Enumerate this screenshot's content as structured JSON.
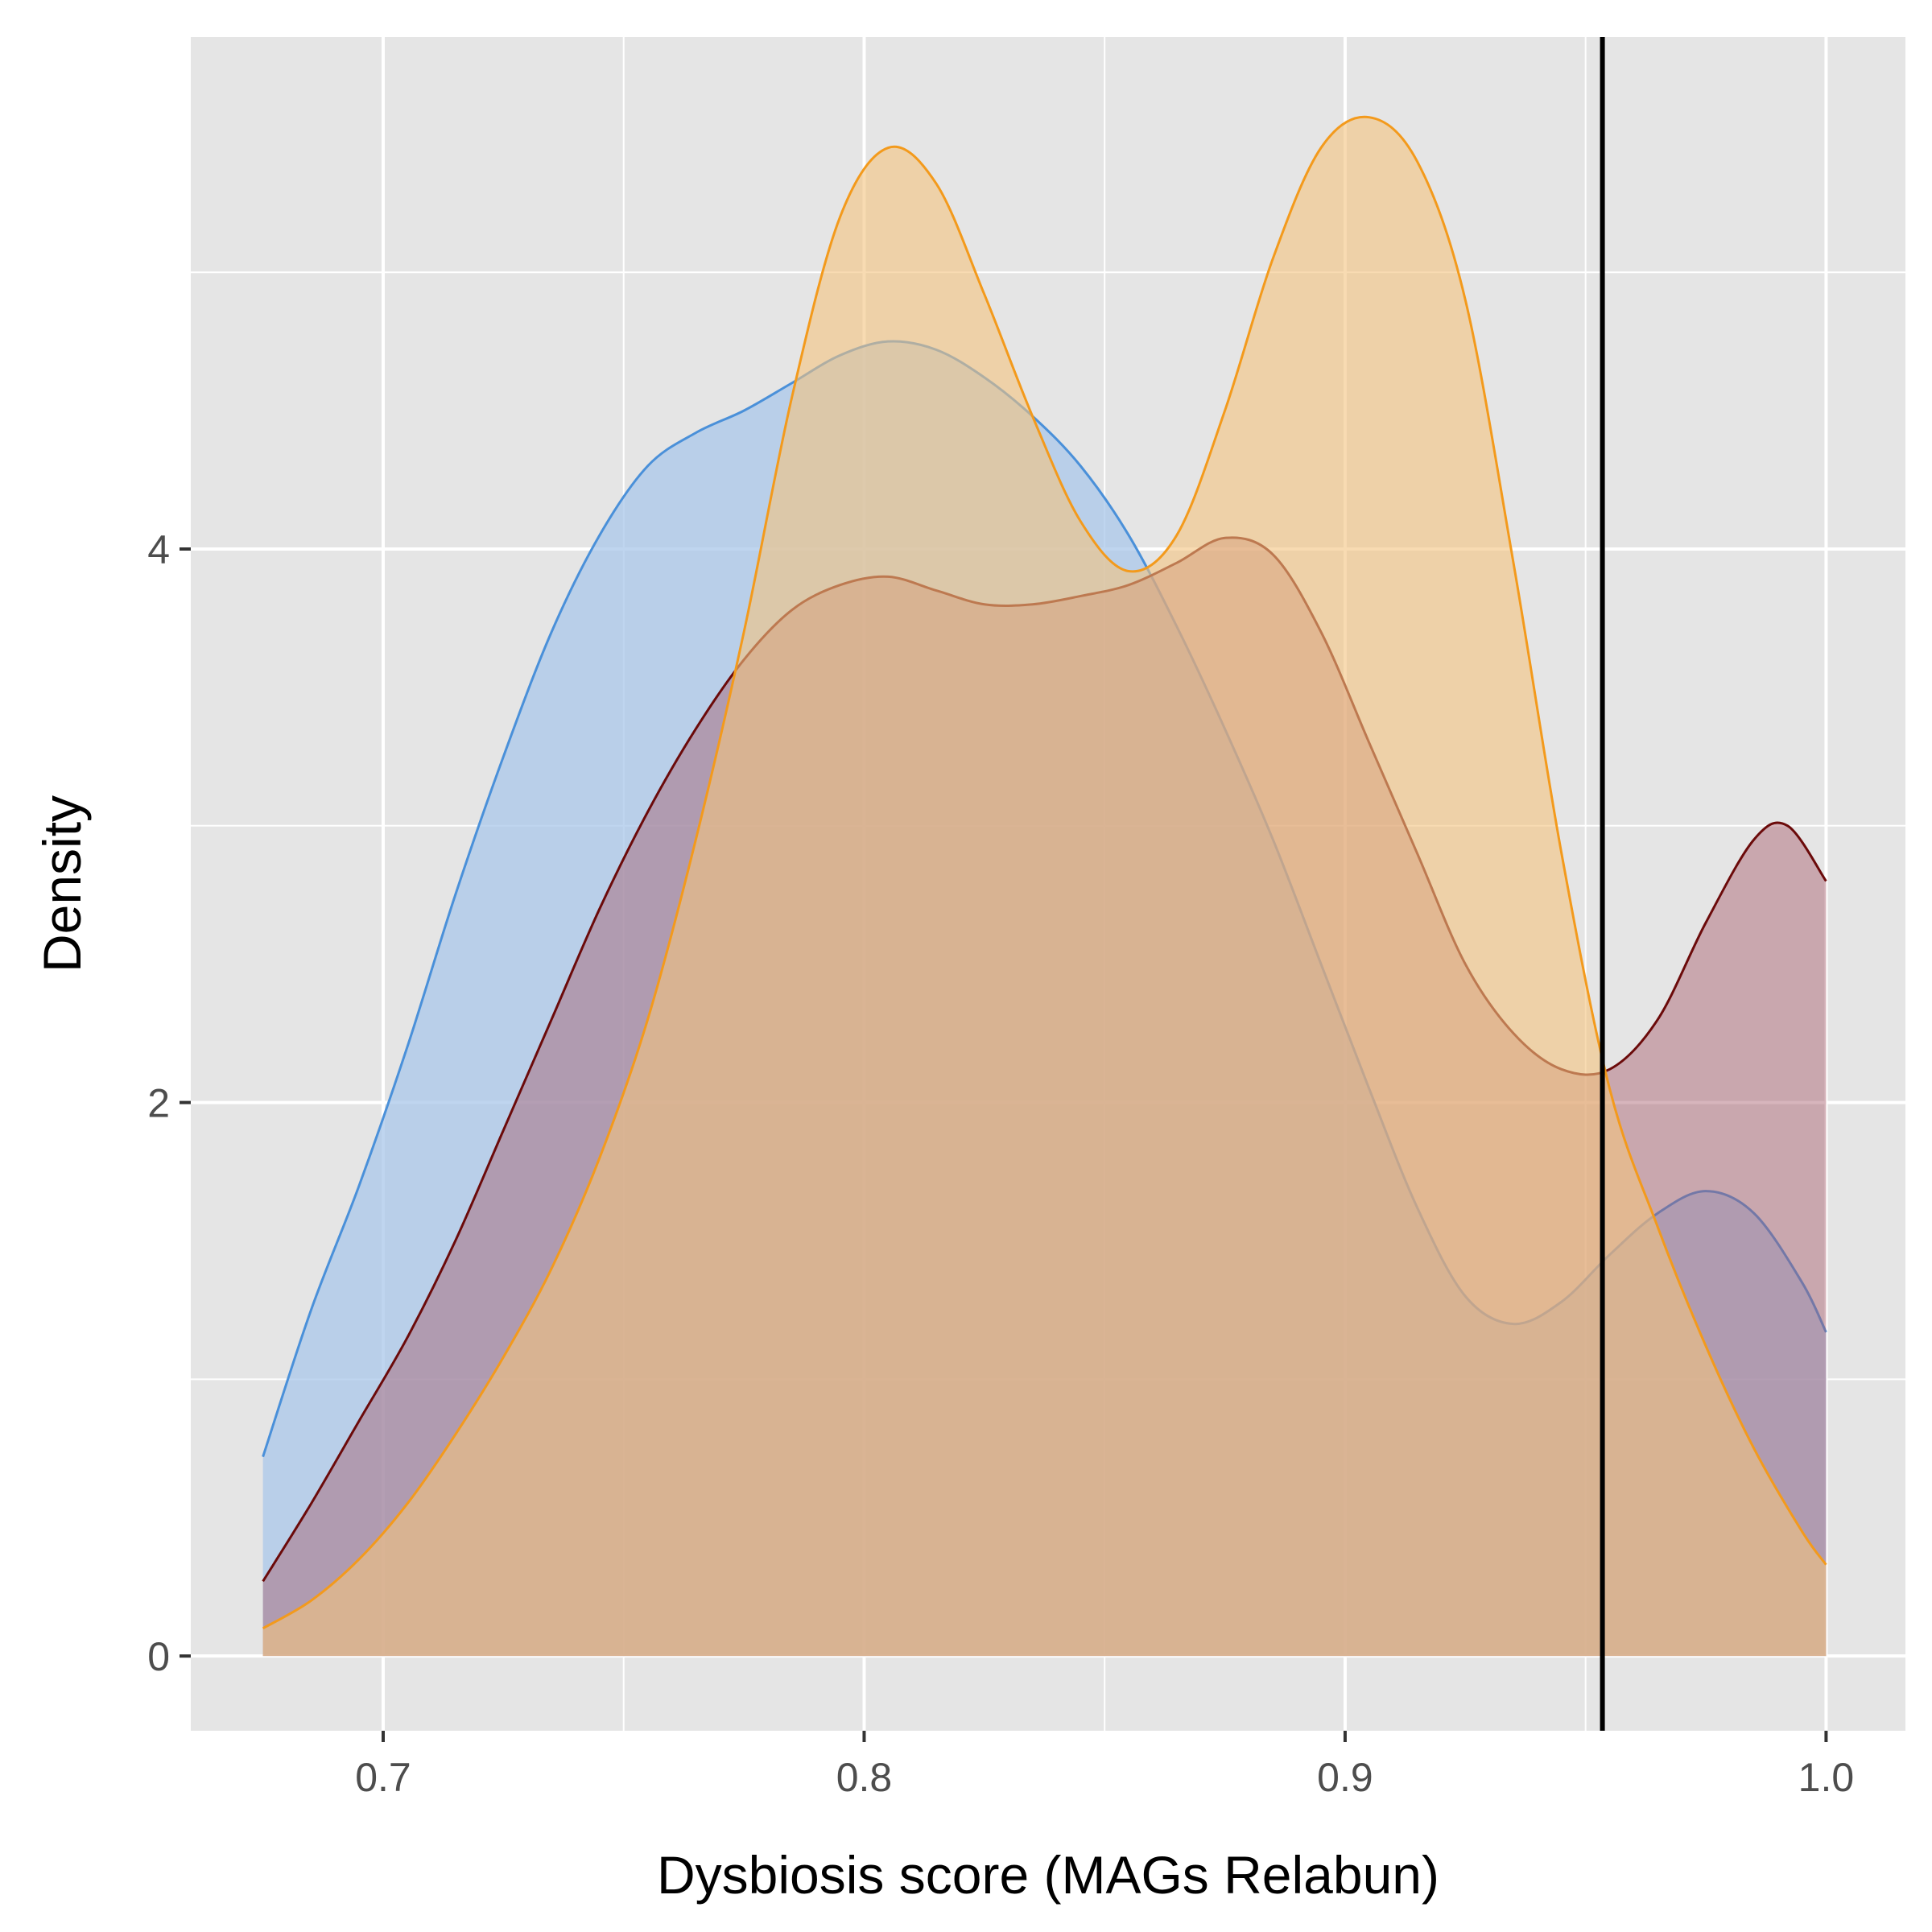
{
  "chart_data": {
    "type": "area",
    "chart_subtype": "density",
    "title": "",
    "xlabel": "Dysbiosis score (MAGs Relabun)",
    "ylabel": "Density",
    "xlim": [
      0.66,
      1.0165
    ],
    "ylim": [
      -0.27,
      5.85
    ],
    "x_ticks": [
      0.7,
      0.8,
      0.9,
      1.0
    ],
    "x_tick_labels": [
      "0.7",
      "0.8",
      "0.9",
      "1.0"
    ],
    "y_ticks": [
      0,
      2,
      4
    ],
    "y_tick_labels": [
      "0",
      "2",
      "4"
    ],
    "x_minor_grid": [
      0.75,
      0.85,
      0.95
    ],
    "y_minor_grid": [
      1,
      3,
      5
    ],
    "grid": true,
    "background_color": "#e5e5e5",
    "grid_color": "#ffffff",
    "legend": "none",
    "vline": {
      "x": 0.9535,
      "color": "#000000"
    },
    "series": [
      {
        "line_color": "#4a90d9",
        "fill_color": "#a9c7ea",
        "fill_opacity": 0.75,
        "points": [
          [
            0.675,
            0.72
          ],
          [
            0.685,
            1.25
          ],
          [
            0.695,
            1.7
          ],
          [
            0.705,
            2.2
          ],
          [
            0.715,
            2.75
          ],
          [
            0.725,
            3.25
          ],
          [
            0.735,
            3.7
          ],
          [
            0.745,
            4.05
          ],
          [
            0.755,
            4.3
          ],
          [
            0.765,
            4.42
          ],
          [
            0.775,
            4.5
          ],
          [
            0.785,
            4.6
          ],
          [
            0.795,
            4.7
          ],
          [
            0.805,
            4.75
          ],
          [
            0.815,
            4.72
          ],
          [
            0.825,
            4.62
          ],
          [
            0.835,
            4.48
          ],
          [
            0.845,
            4.3
          ],
          [
            0.855,
            4.05
          ],
          [
            0.865,
            3.72
          ],
          [
            0.875,
            3.35
          ],
          [
            0.885,
            2.95
          ],
          [
            0.895,
            2.5
          ],
          [
            0.905,
            2.05
          ],
          [
            0.915,
            1.62
          ],
          [
            0.925,
            1.3
          ],
          [
            0.935,
            1.2
          ],
          [
            0.945,
            1.28
          ],
          [
            0.955,
            1.45
          ],
          [
            0.965,
            1.6
          ],
          [
            0.975,
            1.68
          ],
          [
            0.985,
            1.6
          ],
          [
            0.995,
            1.35
          ],
          [
            1.0,
            1.17
          ]
        ]
      },
      {
        "line_color": "#6b0a0a",
        "fill_color": "#a65a6a",
        "fill_opacity": 0.45,
        "points": [
          [
            0.675,
            0.27
          ],
          [
            0.685,
            0.55
          ],
          [
            0.695,
            0.85
          ],
          [
            0.705,
            1.15
          ],
          [
            0.715,
            1.5
          ],
          [
            0.725,
            1.9
          ],
          [
            0.735,
            2.3
          ],
          [
            0.745,
            2.7
          ],
          [
            0.755,
            3.05
          ],
          [
            0.765,
            3.35
          ],
          [
            0.775,
            3.6
          ],
          [
            0.785,
            3.78
          ],
          [
            0.795,
            3.87
          ],
          [
            0.805,
            3.9
          ],
          [
            0.815,
            3.85
          ],
          [
            0.825,
            3.8
          ],
          [
            0.835,
            3.8
          ],
          [
            0.845,
            3.83
          ],
          [
            0.855,
            3.87
          ],
          [
            0.865,
            3.95
          ],
          [
            0.875,
            4.04
          ],
          [
            0.885,
            3.98
          ],
          [
            0.895,
            3.7
          ],
          [
            0.905,
            3.3
          ],
          [
            0.915,
            2.9
          ],
          [
            0.925,
            2.5
          ],
          [
            0.935,
            2.25
          ],
          [
            0.945,
            2.12
          ],
          [
            0.955,
            2.12
          ],
          [
            0.965,
            2.3
          ],
          [
            0.975,
            2.65
          ],
          [
            0.985,
            2.95
          ],
          [
            0.992,
            3.0
          ],
          [
            1.0,
            2.8
          ]
        ]
      },
      {
        "line_color": "#f39a1c",
        "fill_color": "#f4c37e",
        "fill_opacity": 0.6,
        "points": [
          [
            0.675,
            0.1
          ],
          [
            0.685,
            0.2
          ],
          [
            0.695,
            0.35
          ],
          [
            0.705,
            0.55
          ],
          [
            0.715,
            0.8
          ],
          [
            0.725,
            1.08
          ],
          [
            0.735,
            1.4
          ],
          [
            0.745,
            1.8
          ],
          [
            0.755,
            2.3
          ],
          [
            0.765,
            2.95
          ],
          [
            0.775,
            3.7
          ],
          [
            0.785,
            4.55
          ],
          [
            0.795,
            5.2
          ],
          [
            0.805,
            5.45
          ],
          [
            0.815,
            5.32
          ],
          [
            0.825,
            4.92
          ],
          [
            0.835,
            4.48
          ],
          [
            0.845,
            4.1
          ],
          [
            0.855,
            3.92
          ],
          [
            0.865,
            4.05
          ],
          [
            0.875,
            4.5
          ],
          [
            0.885,
            5.05
          ],
          [
            0.895,
            5.45
          ],
          [
            0.905,
            5.56
          ],
          [
            0.915,
            5.4
          ],
          [
            0.925,
            4.9
          ],
          [
            0.935,
            3.95
          ],
          [
            0.945,
            2.9
          ],
          [
            0.955,
            2.05
          ],
          [
            0.965,
            1.55
          ],
          [
            0.975,
            1.12
          ],
          [
            0.985,
            0.75
          ],
          [
            0.995,
            0.45
          ],
          [
            1.0,
            0.33
          ]
        ]
      }
    ]
  }
}
